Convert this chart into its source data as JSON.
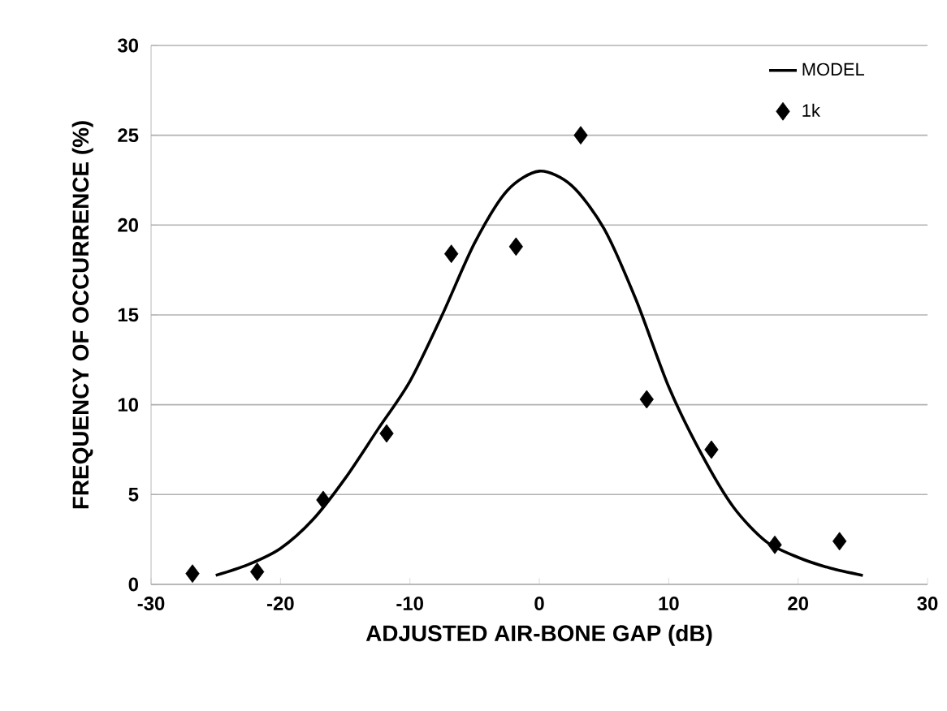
{
  "chart_data": {
    "type": "scatter",
    "xlabel": "ADJUSTED AIR-BONE GAP (dB)",
    "ylabel": "FREQUENCY OF OCCURRENCE (%)",
    "xlim": [
      -30,
      30
    ],
    "ylim": [
      0,
      30
    ],
    "xticks": [
      -30,
      -20,
      -10,
      0,
      10,
      20,
      30
    ],
    "yticks": [
      0,
      5,
      10,
      15,
      20,
      25,
      30
    ],
    "grid": "y",
    "legend": "top right",
    "series": [
      {
        "name": "MODEL",
        "type": "line",
        "color": "#000000",
        "marker": "none",
        "line_style": "solid",
        "x": [
          -25,
          -22.5,
          -20,
          -17.5,
          -15,
          -12.5,
          -10,
          -7.5,
          -5,
          -2.5,
          0,
          2.5,
          5,
          7.5,
          10,
          12.5,
          15,
          17.5,
          20,
          22.5,
          25
        ],
        "values": [
          0.5,
          1.1,
          2.0,
          3.6,
          5.9,
          8.6,
          11.3,
          15.0,
          19.0,
          21.9,
          23.0,
          22.2,
          19.8,
          15.8,
          11.0,
          7.3,
          4.3,
          2.4,
          1.5,
          0.9,
          0.5
        ]
      },
      {
        "name": "1k",
        "color": "#000000",
        "marker": "diamond",
        "x": [
          -26.8,
          -21.8,
          -16.7,
          -11.8,
          -6.8,
          -1.8,
          3.2,
          8.3,
          13.3,
          18.2,
          23.2
        ],
        "values": [
          0.6,
          0.7,
          4.7,
          8.4,
          18.4,
          18.8,
          25.0,
          10.3,
          7.5,
          2.2,
          2.4
        ]
      }
    ]
  }
}
